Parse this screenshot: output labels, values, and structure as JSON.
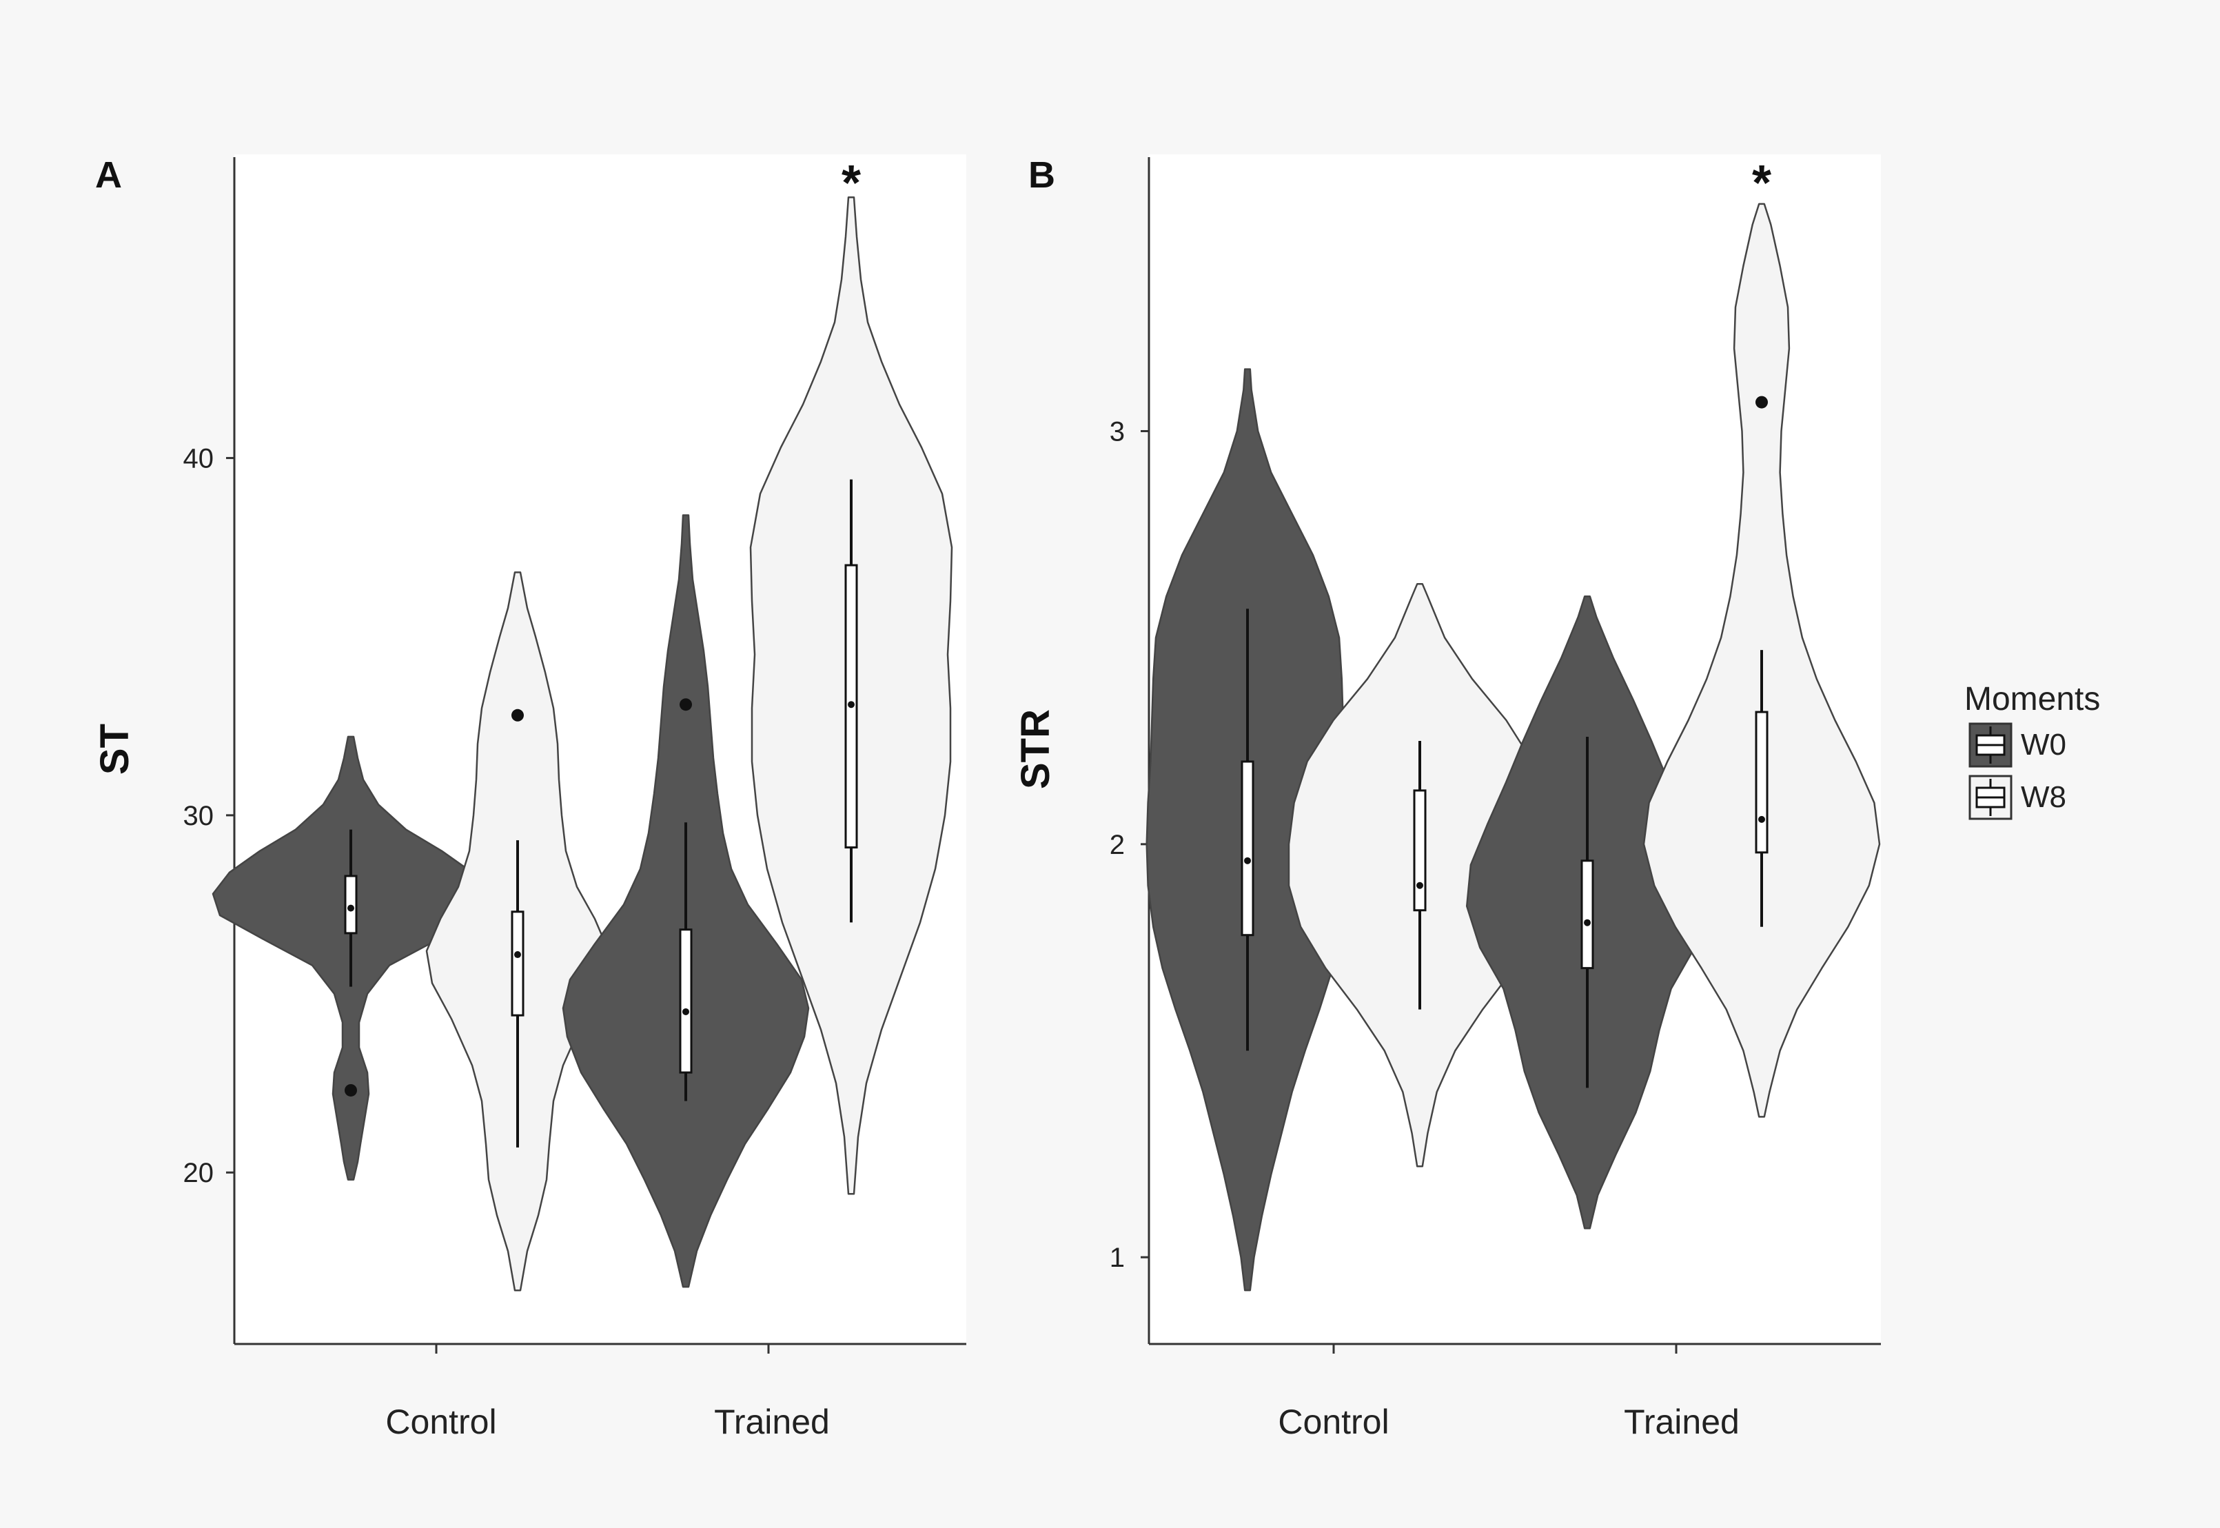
{
  "colors": {
    "page_background": "#f7f7f7",
    "panel_background": "#ffffff",
    "w0_fill": "#555555",
    "w8_fill": "#f4f4f4",
    "outline": "#444444",
    "box_fill": "#ffffff",
    "line": "#111111"
  },
  "legend": {
    "title": "Moments",
    "entries": [
      {
        "label": "W0",
        "fill": "#555555"
      },
      {
        "label": "W8",
        "fill": "#f4f4f4"
      }
    ]
  },
  "chart_data": [
    {
      "panel": "A",
      "type": "violin",
      "ylabel": "ST",
      "xlabel": "",
      "ylim": [
        15.2,
        48.5
      ],
      "yticks": [
        20,
        30,
        40
      ],
      "categories": [
        "Control",
        "Trained"
      ],
      "groups": [
        "W0",
        "W8"
      ],
      "violins": [
        {
          "category": "Control",
          "group": "W0",
          "box": {
            "whisker_low": 25.2,
            "q1": 26.7,
            "median": 27.4,
            "q3": 28.3,
            "whisker_high": 29.6
          },
          "outliers": [
            22.3
          ],
          "range": [
            19.8,
            32.2
          ],
          "density": [
            [
              19.8,
              0.02
            ],
            [
              20.3,
              0.05
            ],
            [
              20.8,
              0.07
            ],
            [
              21.5,
              0.1
            ],
            [
              22.2,
              0.13
            ],
            [
              22.8,
              0.12
            ],
            [
              23.5,
              0.06
            ],
            [
              24.2,
              0.06
            ],
            [
              25.0,
              0.12
            ],
            [
              25.8,
              0.28
            ],
            [
              26.5,
              0.62
            ],
            [
              27.2,
              0.95
            ],
            [
              27.8,
              1.0
            ],
            [
              28.4,
              0.88
            ],
            [
              29.0,
              0.66
            ],
            [
              29.6,
              0.4
            ],
            [
              30.3,
              0.2
            ],
            [
              31.0,
              0.09
            ],
            [
              31.6,
              0.05
            ],
            [
              32.2,
              0.02
            ]
          ]
        },
        {
          "category": "Control",
          "group": "W8",
          "box": {
            "whisker_low": 20.7,
            "q1": 24.4,
            "median": 26.1,
            "q3": 27.3,
            "whisker_high": 29.3
          },
          "outliers": [
            32.8
          ],
          "range": [
            16.7,
            36.8
          ],
          "density": [
            [
              16.7,
              0.02
            ],
            [
              17.8,
              0.07
            ],
            [
              18.8,
              0.15
            ],
            [
              19.8,
              0.21
            ],
            [
              20.8,
              0.23
            ],
            [
              22.0,
              0.26
            ],
            [
              23.0,
              0.33
            ],
            [
              24.3,
              0.48
            ],
            [
              25.3,
              0.62
            ],
            [
              26.2,
              0.66
            ],
            [
              27.1,
              0.56
            ],
            [
              28.0,
              0.43
            ],
            [
              29.0,
              0.35
            ],
            [
              30.0,
              0.32
            ],
            [
              31.0,
              0.3
            ],
            [
              32.0,
              0.29
            ],
            [
              33.0,
              0.26
            ],
            [
              34.0,
              0.2
            ],
            [
              35.0,
              0.13
            ],
            [
              35.8,
              0.07
            ],
            [
              36.4,
              0.04
            ],
            [
              36.8,
              0.02
            ]
          ]
        },
        {
          "category": "Trained",
          "group": "W0",
          "box": {
            "whisker_low": 22.0,
            "q1": 22.8,
            "median": 24.5,
            "q3": 26.8,
            "whisker_high": 29.8
          },
          "outliers": [
            33.1
          ],
          "range": [
            16.8,
            38.4
          ],
          "density": [
            [
              16.8,
              0.02
            ],
            [
              17.8,
              0.08
            ],
            [
              18.8,
              0.18
            ],
            [
              19.8,
              0.3
            ],
            [
              20.8,
              0.43
            ],
            [
              21.8,
              0.6
            ],
            [
              22.8,
              0.76
            ],
            [
              23.8,
              0.86
            ],
            [
              24.6,
              0.89
            ],
            [
              25.4,
              0.84
            ],
            [
              26.4,
              0.66
            ],
            [
              27.5,
              0.45
            ],
            [
              28.5,
              0.33
            ],
            [
              29.5,
              0.27
            ],
            [
              30.6,
              0.23
            ],
            [
              31.6,
              0.2
            ],
            [
              32.6,
              0.18
            ],
            [
              33.6,
              0.16
            ],
            [
              34.6,
              0.13
            ],
            [
              35.6,
              0.09
            ],
            [
              36.6,
              0.05
            ],
            [
              37.6,
              0.03
            ],
            [
              38.4,
              0.02
            ]
          ]
        },
        {
          "category": "Trained",
          "group": "W8",
          "box": {
            "whisker_low": 27.0,
            "q1": 29.1,
            "median": 33.1,
            "q3": 37.0,
            "whisker_high": 39.4
          },
          "outliers": [],
          "range": [
            19.4,
            47.3
          ],
          "density": [
            [
              19.4,
              0.02
            ],
            [
              21.0,
              0.05
            ],
            [
              22.5,
              0.11
            ],
            [
              24.0,
              0.22
            ],
            [
              25.5,
              0.36
            ],
            [
              27.0,
              0.5
            ],
            [
              28.5,
              0.61
            ],
            [
              30.0,
              0.68
            ],
            [
              31.5,
              0.72
            ],
            [
              33.0,
              0.72
            ],
            [
              34.5,
              0.7
            ],
            [
              36.0,
              0.72
            ],
            [
              37.5,
              0.73
            ],
            [
              39.0,
              0.66
            ],
            [
              40.3,
              0.51
            ],
            [
              41.5,
              0.35
            ],
            [
              42.7,
              0.22
            ],
            [
              43.8,
              0.12
            ],
            [
              45.0,
              0.07
            ],
            [
              46.2,
              0.04
            ],
            [
              47.3,
              0.02
            ]
          ]
        }
      ],
      "annotations": [
        {
          "text": "*",
          "category": "Trained",
          "group": "W8"
        }
      ]
    },
    {
      "panel": "B",
      "type": "violin",
      "ylabel": "STR",
      "xlabel": "",
      "ylim": [
        0.79,
        3.67
      ],
      "yticks": [
        1,
        2,
        3
      ],
      "categories": [
        "Control",
        "Trained"
      ],
      "groups": [
        "W0",
        "W8"
      ],
      "violins": [
        {
          "category": "Control",
          "group": "W0",
          "box": {
            "whisker_low": 1.5,
            "q1": 1.78,
            "median": 1.96,
            "q3": 2.2,
            "whisker_high": 2.57
          },
          "outliers": [],
          "range": [
            0.92,
            3.15
          ],
          "density": [
            [
              0.92,
              0.02
            ],
            [
              1.0,
              0.05
            ],
            [
              1.1,
              0.11
            ],
            [
              1.2,
              0.18
            ],
            [
              1.3,
              0.26
            ],
            [
              1.4,
              0.34
            ],
            [
              1.5,
              0.44
            ],
            [
              1.6,
              0.55
            ],
            [
              1.7,
              0.65
            ],
            [
              1.8,
              0.72
            ],
            [
              1.9,
              0.76
            ],
            [
              2.0,
              0.77
            ],
            [
              2.1,
              0.76
            ],
            [
              2.2,
              0.74
            ],
            [
              2.3,
              0.73
            ],
            [
              2.4,
              0.72
            ],
            [
              2.5,
              0.7
            ],
            [
              2.6,
              0.62
            ],
            [
              2.7,
              0.5
            ],
            [
              2.8,
              0.34
            ],
            [
              2.9,
              0.18
            ],
            [
              3.0,
              0.08
            ],
            [
              3.1,
              0.03
            ],
            [
              3.15,
              0.02
            ]
          ]
        },
        {
          "category": "Control",
          "group": "W8",
          "box": {
            "whisker_low": 1.6,
            "q1": 1.84,
            "median": 1.9,
            "q3": 2.13,
            "whisker_high": 2.25
          },
          "outliers": [],
          "range": [
            1.22,
            2.63
          ],
          "density": [
            [
              1.22,
              0.02
            ],
            [
              1.3,
              0.06
            ],
            [
              1.4,
              0.13
            ],
            [
              1.5,
              0.27
            ],
            [
              1.6,
              0.48
            ],
            [
              1.7,
              0.72
            ],
            [
              1.8,
              0.91
            ],
            [
              1.9,
              1.0
            ],
            [
              2.0,
              1.0
            ],
            [
              2.1,
              0.96
            ],
            [
              2.2,
              0.86
            ],
            [
              2.3,
              0.66
            ],
            [
              2.4,
              0.4
            ],
            [
              2.5,
              0.19
            ],
            [
              2.6,
              0.06
            ],
            [
              2.63,
              0.02
            ]
          ]
        },
        {
          "category": "Trained",
          "group": "W0",
          "box": {
            "whisker_low": 1.41,
            "q1": 1.7,
            "median": 1.81,
            "q3": 1.96,
            "whisker_high": 2.26
          },
          "outliers": [],
          "range": [
            1.07,
            2.6
          ],
          "density": [
            [
              1.07,
              0.02
            ],
            [
              1.15,
              0.08
            ],
            [
              1.25,
              0.22
            ],
            [
              1.35,
              0.37
            ],
            [
              1.45,
              0.48
            ],
            [
              1.55,
              0.55
            ],
            [
              1.65,
              0.64
            ],
            [
              1.75,
              0.82
            ],
            [
              1.85,
              0.92
            ],
            [
              1.95,
              0.89
            ],
            [
              2.05,
              0.76
            ],
            [
              2.15,
              0.62
            ],
            [
              2.25,
              0.49
            ],
            [
              2.35,
              0.35
            ],
            [
              2.45,
              0.2
            ],
            [
              2.55,
              0.07
            ],
            [
              2.6,
              0.02
            ]
          ]
        },
        {
          "category": "Trained",
          "group": "W8",
          "box": {
            "whisker_low": 1.8,
            "q1": 1.98,
            "median": 2.06,
            "q3": 2.32,
            "whisker_high": 2.47
          },
          "outliers": [
            3.07
          ],
          "range": [
            1.34,
            3.55
          ],
          "density": [
            [
              1.34,
              0.02
            ],
            [
              1.4,
              0.06
            ],
            [
              1.5,
              0.14
            ],
            [
              1.6,
              0.27
            ],
            [
              1.7,
              0.46
            ],
            [
              1.8,
              0.66
            ],
            [
              1.9,
              0.82
            ],
            [
              2.0,
              0.9
            ],
            [
              2.1,
              0.86
            ],
            [
              2.2,
              0.72
            ],
            [
              2.3,
              0.56
            ],
            [
              2.4,
              0.42
            ],
            [
              2.5,
              0.31
            ],
            [
              2.6,
              0.24
            ],
            [
              2.7,
              0.19
            ],
            [
              2.8,
              0.16
            ],
            [
              2.9,
              0.14
            ],
            [
              3.0,
              0.15
            ],
            [
              3.1,
              0.18
            ],
            [
              3.2,
              0.21
            ],
            [
              3.3,
              0.2
            ],
            [
              3.4,
              0.14
            ],
            [
              3.5,
              0.07
            ],
            [
              3.55,
              0.02
            ]
          ]
        }
      ],
      "annotations": [
        {
          "text": "*",
          "category": "Trained",
          "group": "W8"
        }
      ]
    }
  ]
}
